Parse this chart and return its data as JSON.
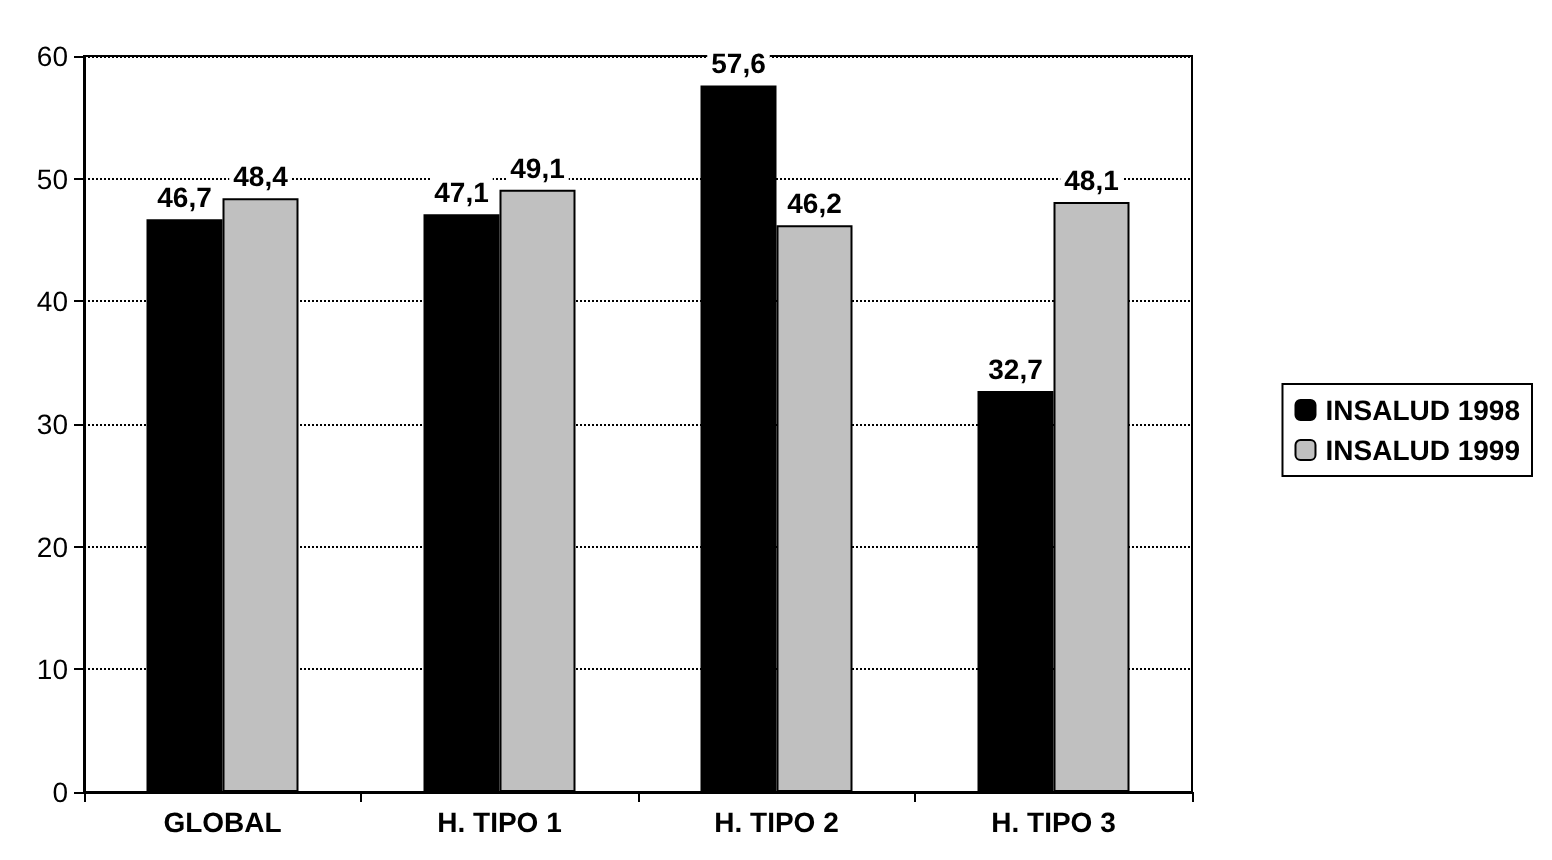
{
  "chart_data": {
    "type": "bar",
    "categories": [
      "GLOBAL",
      "H. TIPO 1",
      "H. TIPO 2",
      "H. TIPO 3"
    ],
    "series": [
      {
        "name": "INSALUD 1998",
        "color": "#000000",
        "values": [
          46.7,
          47.1,
          57.6,
          32.7
        ],
        "value_labels": [
          "46,7",
          "47,1",
          "57,6",
          "32,7"
        ]
      },
      {
        "name": "INSALUD 1999",
        "color": "#c0c0c0",
        "values": [
          48.4,
          49.1,
          46.2,
          48.1
        ],
        "value_labels": [
          "48,4",
          "49,1",
          "46,2",
          "48,1"
        ]
      }
    ],
    "ylim": [
      0,
      60
    ],
    "yticks": [
      0,
      10,
      20,
      30,
      40,
      50,
      60
    ],
    "grid": "y",
    "line_style": "dotted",
    "legend": "right"
  }
}
